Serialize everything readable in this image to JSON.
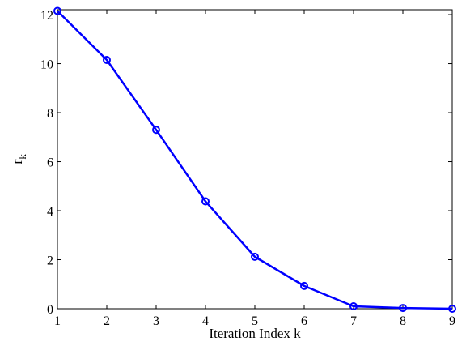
{
  "chart_data": {
    "type": "line",
    "xlabel": "Iteration Index k",
    "ylabel": {
      "main": "r",
      "sub": "k"
    },
    "xlim": [
      1,
      9
    ],
    "ylim": [
      0,
      12.2
    ],
    "xticks": [
      "1",
      "2",
      "3",
      "4",
      "5",
      "6",
      "7",
      "8",
      "9"
    ],
    "yticks": [
      "0",
      "2",
      "4",
      "6",
      "8",
      "10",
      "12"
    ],
    "grid": false,
    "series": [
      {
        "x": [
          1,
          2,
          3,
          4,
          5,
          6,
          7,
          8,
          9
        ],
        "values": [
          12.15,
          10.15,
          7.3,
          4.38,
          2.12,
          0.93,
          0.1,
          0.03,
          0.0
        ],
        "color": "#0000ff",
        "marker": "circle"
      }
    ]
  }
}
